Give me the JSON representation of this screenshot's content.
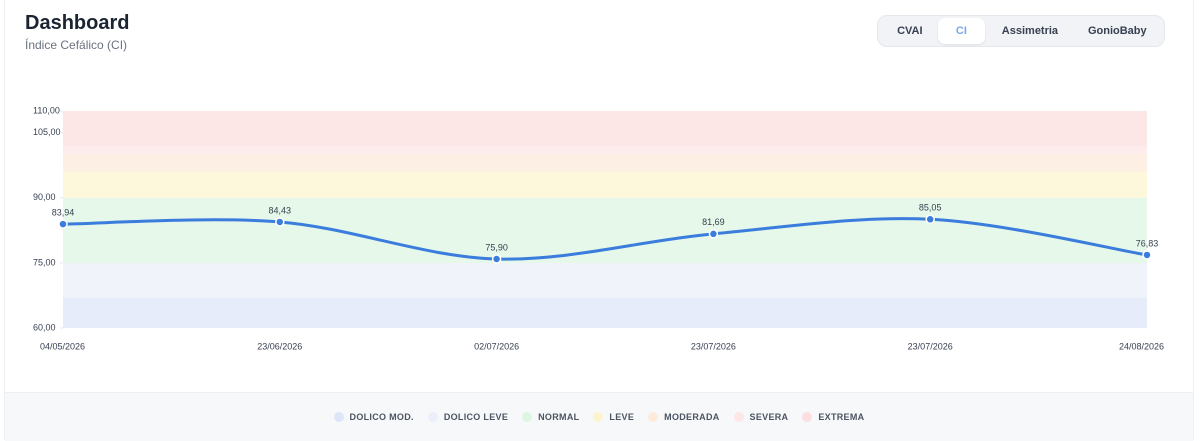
{
  "header": {
    "title": "Dashboard",
    "subtitle": "Índice Cefálico (CI)"
  },
  "tabs": [
    "CVAI",
    "CI",
    "Assimetria",
    "GonioBaby"
  ],
  "active_tab": 1,
  "chart_data": {
    "type": "line",
    "categories": [
      "04/05/2026",
      "23/06/2026",
      "02/07/2026",
      "23/07/2026",
      "23/07/2026",
      "24/08/2026"
    ],
    "series": [
      {
        "name": "CI",
        "color": "#3b7ddd",
        "values": [
          83.94,
          84.43,
          75.9,
          81.69,
          85.05,
          76.83
        ],
        "value_labels": [
          "83,94",
          "84,43",
          "75,90",
          "81,69",
          "85,05",
          "76,83"
        ]
      }
    ],
    "ylim": [
      60,
      110
    ],
    "yticks": [
      {
        "value": 60,
        "label": "60,00"
      },
      {
        "value": 75,
        "label": "75,00"
      },
      {
        "value": 90,
        "label": "90,00"
      },
      {
        "value": 105,
        "label": "105,00"
      },
      {
        "value": 110,
        "label": "110,00"
      }
    ],
    "bands": [
      {
        "name": "DOLICO MOD.",
        "color": "#dde5f8",
        "range": [
          60,
          67
        ]
      },
      {
        "name": "DOLICO LEVE",
        "color": "#eceffa",
        "range": [
          67,
          75
        ]
      },
      {
        "name": "NORMAL",
        "color": "#dcf6e2",
        "range": [
          75,
          90
        ]
      },
      {
        "name": "LEVE",
        "color": "#fcf4cf",
        "range": [
          90,
          96
        ]
      },
      {
        "name": "MODERADA",
        "color": "#fdeadb",
        "range": [
          96,
          100
        ]
      },
      {
        "name": "SEVERA",
        "color": "#fde6e6",
        "range": [
          100,
          102
        ]
      },
      {
        "name": "EXTREMA",
        "color": "#fcdede",
        "range": [
          102,
          110
        ]
      }
    ]
  }
}
